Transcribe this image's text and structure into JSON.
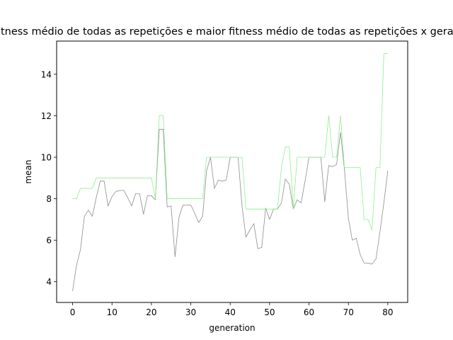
{
  "chart_data": {
    "type": "line",
    "title": "Fitness médio de todas as repetições e  maior fitness médio de todas as repetições x geração",
    "xlabel": "generation",
    "ylabel": "mean",
    "xlim": [
      -4.05,
      85.05
    ],
    "ylim": [
      3.0,
      15.6
    ],
    "xticks": [
      0,
      10,
      20,
      30,
      40,
      50,
      60,
      70,
      80
    ],
    "yticks": [
      4,
      6,
      8,
      10,
      12,
      14
    ],
    "grid": false,
    "legend": "none",
    "x": [
      0,
      1,
      2,
      3,
      4,
      5,
      6,
      7,
      8,
      9,
      10,
      11,
      12,
      13,
      14,
      15,
      16,
      17,
      18,
      19,
      20,
      21,
      22,
      23,
      24,
      25,
      26,
      27,
      28,
      29,
      30,
      31,
      32,
      33,
      34,
      35,
      36,
      37,
      38,
      39,
      40,
      41,
      42,
      43,
      44,
      45,
      46,
      47,
      48,
      49,
      50,
      51,
      52,
      53,
      54,
      55,
      56,
      57,
      58,
      59,
      60,
      61,
      62,
      63,
      64,
      65,
      66,
      67,
      68,
      69,
      70,
      71,
      72,
      73,
      74,
      75,
      76,
      77,
      78,
      79,
      80,
      81
    ],
    "series": [
      {
        "color": "#8c8c8c",
        "values": [
          3.55,
          4.8,
          5.55,
          7.15,
          7.45,
          7.15,
          8.05,
          8.85,
          8.85,
          7.65,
          8.1,
          8.35,
          8.4,
          8.4,
          8.05,
          7.65,
          8.25,
          8.25,
          7.25,
          8.15,
          8.15,
          7.95,
          11.35,
          11.35,
          7.6,
          7.65,
          5.2,
          7.1,
          7.7,
          7.7,
          7.7,
          7.3,
          6.85,
          7.15,
          9.35,
          10.0,
          8.5,
          8.9,
          8.85,
          8.9,
          10.0,
          10.0,
          10.0,
          7.65,
          6.15,
          6.5,
          6.8,
          5.6,
          5.65,
          7.55,
          7.0,
          7.5,
          7.5,
          7.8,
          8.95,
          8.7,
          7.5,
          7.95,
          7.8,
          8.85,
          10.0,
          10.0,
          10.0,
          10.0,
          7.85,
          9.6,
          9.55,
          9.65,
          11.2,
          9.4,
          7.05,
          6.0,
          6.1,
          5.3,
          4.9,
          4.9,
          4.85,
          5.1,
          6.4,
          7.8,
          9.35,
          null
        ]
      },
      {
        "color": "#90ee90",
        "values": [
          8.0,
          8.0,
          8.5,
          8.5,
          8.5,
          8.5,
          9.0,
          9.0,
          9.0,
          9.0,
          9.0,
          9.0,
          9.0,
          9.0,
          9.0,
          9.0,
          9.0,
          9.0,
          9.0,
          9.0,
          9.0,
          8.0,
          12.0,
          12.0,
          8.0,
          8.0,
          8.0,
          8.0,
          8.0,
          8.0,
          8.0,
          8.0,
          8.0,
          8.0,
          10.0,
          10.0,
          10.0,
          10.0,
          10.0,
          10.0,
          10.0,
          10.0,
          10.0,
          10.0,
          7.5,
          7.5,
          7.5,
          7.5,
          7.5,
          7.5,
          7.5,
          7.5,
          7.5,
          9.5,
          10.5,
          10.5,
          7.5,
          10.0,
          10.0,
          10.0,
          10.0,
          10.0,
          10.0,
          10.0,
          10.0,
          12.0,
          10.0,
          10.0,
          12.0,
          9.5,
          9.5,
          9.5,
          9.5,
          9.5,
          7.0,
          7.0,
          6.5,
          9.5,
          9.5,
          15.0,
          15.0,
          null
        ]
      }
    ]
  }
}
